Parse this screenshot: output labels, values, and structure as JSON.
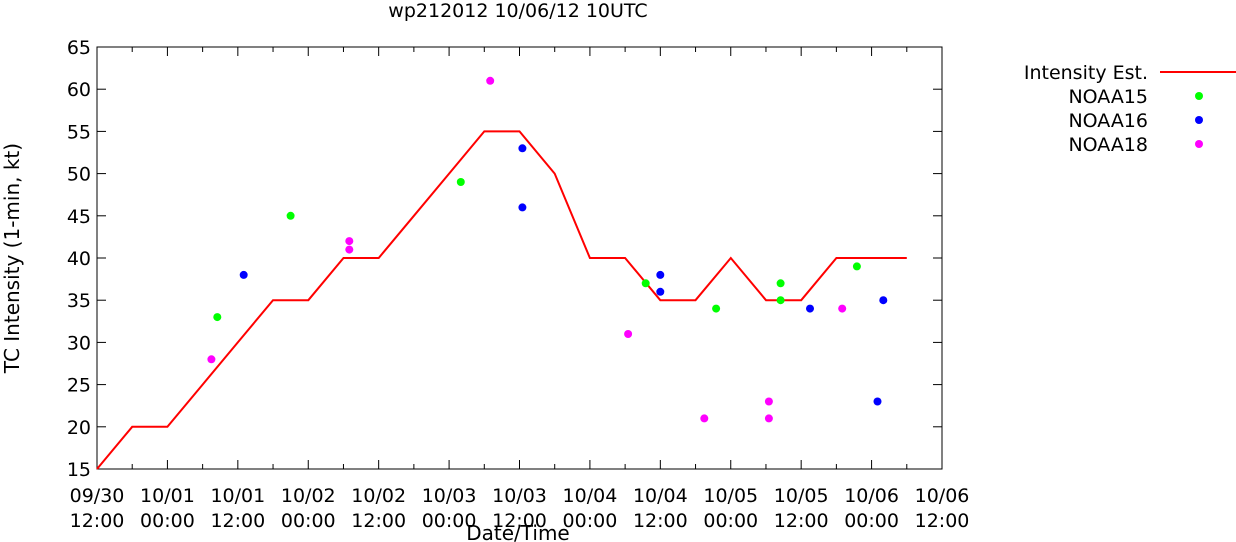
{
  "chart_data": {
    "type": "line",
    "title": "wp212012 10/06/12 10UTC",
    "xlabel": "Date/Time",
    "ylabel": "TC Intensity (1-min, kt)",
    "ylim": [
      15,
      65
    ],
    "xlim": [
      "2012-09-30 12:00",
      "2012-10-06 12:00"
    ],
    "yticks": [
      "15",
      "20",
      "25",
      "30",
      "35",
      "40",
      "45",
      "50",
      "55",
      "60",
      "65"
    ],
    "xticks": [
      {
        "date": "09/30",
        "time": "12:00"
      },
      {
        "date": "10/01",
        "time": "00:00"
      },
      {
        "date": "10/01",
        "time": "12:00"
      },
      {
        "date": "10/02",
        "time": "00:00"
      },
      {
        "date": "10/02",
        "time": "12:00"
      },
      {
        "date": "10/03",
        "time": "00:00"
      },
      {
        "date": "10/03",
        "time": "12:00"
      },
      {
        "date": "10/04",
        "time": "00:00"
      },
      {
        "date": "10/04",
        "time": "12:00"
      },
      {
        "date": "10/05",
        "time": "00:00"
      },
      {
        "date": "10/05",
        "time": "12:00"
      },
      {
        "date": "10/06",
        "time": "00:00"
      },
      {
        "date": "10/06",
        "time": "12:00"
      }
    ],
    "grid": false,
    "legend": "outside-right",
    "series": [
      {
        "name": "Intensity Est.",
        "style": "line",
        "color": "#ff0000",
        "x": [
          "2012-09-30 12:00",
          "2012-09-30 18:00",
          "2012-10-01 00:00",
          "2012-10-01 06:00",
          "2012-10-01 12:00",
          "2012-10-01 18:00",
          "2012-10-02 00:00",
          "2012-10-02 06:00",
          "2012-10-02 12:00",
          "2012-10-02 18:00",
          "2012-10-03 00:00",
          "2012-10-03 06:00",
          "2012-10-03 12:00",
          "2012-10-03 18:00",
          "2012-10-04 00:00",
          "2012-10-04 06:00",
          "2012-10-04 12:00",
          "2012-10-04 18:00",
          "2012-10-05 00:00",
          "2012-10-05 06:00",
          "2012-10-05 12:00",
          "2012-10-05 18:00",
          "2012-10-06 00:00",
          "2012-10-06 06:00"
        ],
        "y": [
          15,
          20,
          20,
          25,
          30,
          35,
          35,
          40,
          40,
          45,
          50,
          55,
          55,
          50,
          40,
          40,
          35,
          35,
          40,
          35,
          35,
          40,
          40,
          40
        ]
      },
      {
        "name": "NOAA15",
        "style": "points",
        "color": "#00ff00",
        "x": [
          "2012-10-01 08:30",
          "2012-10-01 21:00",
          "2012-10-03 02:00",
          "2012-10-04 09:30",
          "2012-10-04 21:30",
          "2012-10-05 08:30",
          "2012-10-05 08:30",
          "2012-10-05 21:30"
        ],
        "y": [
          33,
          45,
          49,
          37,
          34,
          37,
          35,
          39
        ]
      },
      {
        "name": "NOAA16",
        "style": "points",
        "color": "#0000ff",
        "x": [
          "2012-10-01 13:00",
          "2012-10-03 12:30",
          "2012-10-03 12:30",
          "2012-10-04 12:00",
          "2012-10-04 12:00",
          "2012-10-05 13:30",
          "2012-10-06 01:00",
          "2012-10-06 02:00"
        ],
        "y": [
          38,
          53,
          46,
          38,
          36,
          34,
          23,
          35
        ]
      },
      {
        "name": "NOAA18",
        "style": "points",
        "color": "#ff00ff",
        "x": [
          "2012-10-01 07:30",
          "2012-10-02 07:00",
          "2012-10-02 07:00",
          "2012-10-03 07:00",
          "2012-10-04 06:30",
          "2012-10-04 19:30",
          "2012-10-05 06:30",
          "2012-10-05 06:30",
          "2012-10-05 19:00"
        ],
        "y": [
          28,
          42,
          41,
          61,
          31,
          21,
          23,
          21,
          34
        ]
      }
    ]
  }
}
